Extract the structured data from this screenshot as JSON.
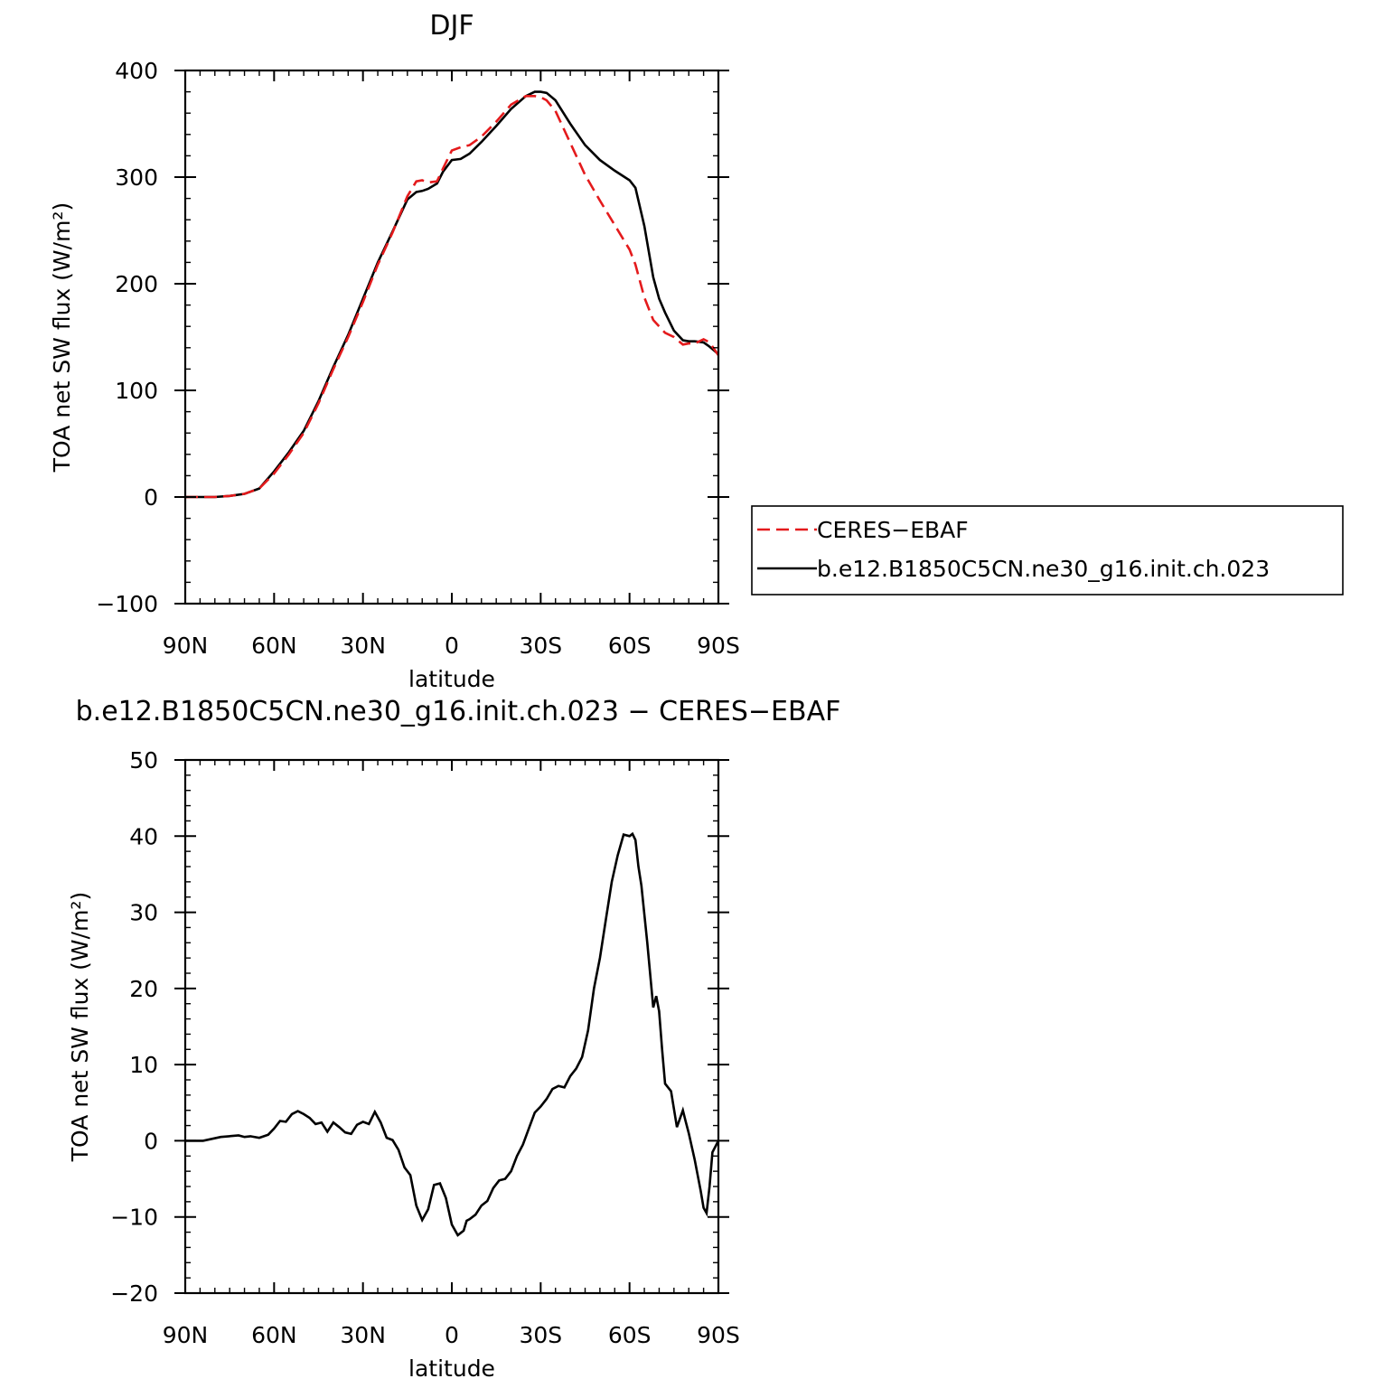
{
  "colors": {
    "observed": "#e41a1c",
    "model": "#000000"
  },
  "chart_data": [
    {
      "type": "line",
      "title": "DJF",
      "xlabel": "latitude",
      "ylabel": "TOA net SW flux (W/m²)",
      "xlim": [
        -90,
        90
      ],
      "ylim": [
        -100,
        400
      ],
      "xticks": [
        {
          "value": -90,
          "label": "90N"
        },
        {
          "value": -60,
          "label": "60N"
        },
        {
          "value": -30,
          "label": "30N"
        },
        {
          "value": 0,
          "label": "0"
        },
        {
          "value": 30,
          "label": "30S"
        },
        {
          "value": 60,
          "label": "60S"
        },
        {
          "value": 90,
          "label": "90S"
        }
      ],
      "yticks": [
        {
          "value": 400,
          "label": "400"
        },
        {
          "value": 300,
          "label": "300"
        },
        {
          "value": 200,
          "label": "200"
        },
        {
          "value": 100,
          "label": "100"
        },
        {
          "value": 0,
          "label": "0"
        },
        {
          "value": -100,
          "label": "−100"
        }
      ],
      "legend": {
        "placement": "right, outside plot"
      },
      "series": [
        {
          "name": "CERES−EBAF",
          "style": "dashed",
          "x": [
            -90,
            -85,
            -80,
            -75,
            -70,
            -65,
            -60,
            -55,
            -50,
            -45,
            -40,
            -35,
            -30,
            -25,
            -20,
            -15,
            -12,
            -10,
            -8,
            -5,
            -3,
            0,
            3,
            6,
            10,
            15,
            20,
            25,
            28,
            30,
            32,
            35,
            40,
            45,
            50,
            55,
            60,
            62,
            65,
            68,
            70,
            72,
            75,
            78,
            80,
            82,
            85,
            87,
            90
          ],
          "y": [
            0,
            0,
            0,
            1,
            3,
            8,
            22,
            40,
            60,
            88,
            120,
            150,
            183,
            218,
            248,
            282,
            296,
            297,
            295,
            296,
            308,
            325,
            328,
            330,
            338,
            352,
            368,
            376,
            376,
            375,
            372,
            362,
            332,
            302,
            278,
            255,
            232,
            218,
            187,
            166,
            160,
            154,
            150,
            143,
            144,
            144,
            148,
            145,
            133
          ]
        },
        {
          "name": "b.e12.B1850C5CN.ne30_g16.init.ch.023",
          "style": "solid",
          "x": [
            -90,
            -85,
            -80,
            -75,
            -70,
            -65,
            -60,
            -55,
            -50,
            -45,
            -40,
            -35,
            -30,
            -25,
            -20,
            -15,
            -12,
            -10,
            -8,
            -5,
            -3,
            0,
            3,
            6,
            10,
            15,
            20,
            25,
            28,
            30,
            32,
            35,
            40,
            45,
            50,
            55,
            60,
            62,
            65,
            68,
            70,
            72,
            75,
            78,
            80,
            82,
            85,
            87,
            90
          ],
          "y": [
            0,
            0,
            0,
            1,
            3,
            8,
            24,
            42,
            62,
            90,
            122,
            152,
            186,
            220,
            249,
            279,
            286,
            287,
            289,
            294,
            305,
            316,
            317,
            322,
            333,
            348,
            364,
            376,
            380,
            380,
            379,
            372,
            350,
            330,
            316,
            306,
            297,
            290,
            254,
            206,
            186,
            173,
            156,
            147,
            146,
            146,
            145,
            141,
            134
          ]
        }
      ]
    },
    {
      "type": "line",
      "title": "b.e12.B1850C5CN.ne30_g16.init.ch.023 − CERES−EBAF",
      "xlabel": "latitude",
      "ylabel": "TOA net SW flux (W/m²)",
      "xlim": [
        -90,
        90
      ],
      "ylim": [
        -20,
        50
      ],
      "xticks": [
        {
          "value": -90,
          "label": "90N"
        },
        {
          "value": -60,
          "label": "60N"
        },
        {
          "value": -30,
          "label": "30N"
        },
        {
          "value": 0,
          "label": "0"
        },
        {
          "value": 30,
          "label": "30S"
        },
        {
          "value": 60,
          "label": "60S"
        },
        {
          "value": 90,
          "label": "90S"
        }
      ],
      "yticks": [
        {
          "value": 50,
          "label": "50"
        },
        {
          "value": 40,
          "label": "40"
        },
        {
          "value": 30,
          "label": "30"
        },
        {
          "value": 20,
          "label": "20"
        },
        {
          "value": 10,
          "label": "10"
        },
        {
          "value": 0,
          "label": "0"
        },
        {
          "value": -10,
          "label": "−10"
        },
        {
          "value": -20,
          "label": "−20"
        }
      ],
      "series": [
        {
          "style": "solid",
          "x": [
            -90,
            -84,
            -78,
            -72,
            -70,
            -68,
            -65,
            -62,
            -60,
            -58,
            -56,
            -54,
            -52,
            -50,
            -48,
            -46,
            -44,
            -42,
            -40,
            -38,
            -36,
            -34,
            -32,
            -30,
            -28,
            -26,
            -24,
            -22,
            -20,
            -18,
            -16,
            -14,
            -12,
            -10,
            -8,
            -6,
            -4,
            -2,
            0,
            2,
            4,
            5,
            6,
            8,
            10,
            12,
            14,
            16,
            18,
            20,
            22,
            24,
            26,
            28,
            30,
            32,
            34,
            36,
            38,
            40,
            42,
            44,
            46,
            48,
            50,
            52,
            54,
            56,
            58,
            60,
            61,
            62,
            63,
            64,
            66,
            68,
            69,
            70,
            71,
            72,
            74,
            76,
            78,
            79,
            80,
            82,
            84,
            85,
            86,
            87,
            88,
            90
          ],
          "y": [
            0,
            0,
            0.5,
            0.7,
            0.5,
            0.6,
            0.4,
            0.8,
            1.6,
            2.6,
            2.5,
            3.5,
            3.9,
            3.5,
            3.0,
            2.2,
            2.4,
            1.2,
            2.4,
            1.8,
            1.1,
            0.9,
            2.1,
            2.5,
            2.2,
            3.8,
            2.4,
            0.4,
            0.1,
            -1.2,
            -3.5,
            -4.5,
            -8.5,
            -10.4,
            -9,
            -5.8,
            -5.6,
            -7.5,
            -11,
            -12.4,
            -11.8,
            -10.5,
            -10.3,
            -9.7,
            -8.5,
            -7.9,
            -6.2,
            -5.2,
            -5,
            -4,
            -2,
            -0.5,
            1.6,
            3.7,
            4.5,
            5.5,
            6.8,
            7.2,
            7.0,
            8.5,
            9.5,
            11.0,
            14.5,
            20,
            24,
            29,
            34,
            37.5,
            40.2,
            40.0,
            40.3,
            39.5,
            36,
            33.5,
            26,
            17.5,
            19,
            17,
            12,
            7.5,
            6.5,
            1.8,
            4,
            2.5,
            1,
            -2.5,
            -6.5,
            -8.8,
            -9.5,
            -6,
            -1.5,
            0
          ]
        }
      ]
    }
  ]
}
